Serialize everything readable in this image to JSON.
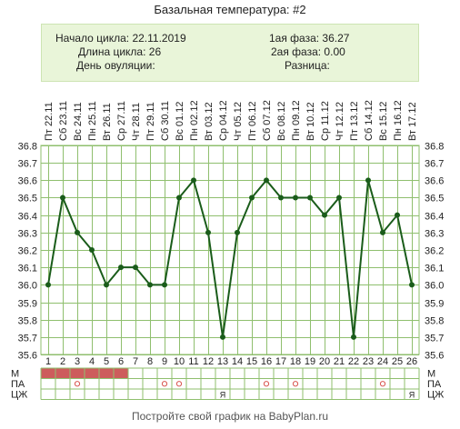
{
  "title": "Базальная температура: #2",
  "info": {
    "cycle_start": "Начало цикла: 22.11.2019",
    "cycle_length": "Длина цикла: 26",
    "ovulation_day": "День овуляции:",
    "phase1": "1ая фаза: 36.27",
    "phase2": "2ая фаза: 0.00",
    "difference": "Разница:"
  },
  "footer": "Постройте свой график на BabyPlan.ru",
  "colors": {
    "line": "#1a5c1a",
    "grid": "#8fbf6e",
    "menstruation": "#cd5c5c",
    "pa_marker": "#d9534f"
  },
  "chart_data": {
    "type": "line",
    "title": "Базальная температура: #2",
    "x": [
      1,
      2,
      3,
      4,
      5,
      6,
      7,
      8,
      9,
      10,
      11,
      12,
      13,
      14,
      15,
      16,
      17,
      18,
      19,
      20,
      21,
      22,
      23,
      24,
      25,
      26
    ],
    "dates": [
      "Пт 22.11",
      "Сб 23.11",
      "Вс 24.11",
      "Пн 25.11",
      "Вт 26.11",
      "Ср 27.11",
      "Чт 28.11",
      "Пт 29.11",
      "Сб 30.11",
      "Вс 01.12",
      "Пн 02.12",
      "Вт 03.12",
      "Ср 04.12",
      "Чт 05.12",
      "Пт 06.12",
      "Сб 07.12",
      "Вс 08.12",
      "Пн 09.12",
      "Вт 10.12",
      "Ср 11.12",
      "Чт 12.12",
      "Пт 13.12",
      "Сб 14.12",
      "Вс 15.12",
      "Пн 16.12",
      "Вт 17.12"
    ],
    "series": [
      {
        "values": [
          36.0,
          36.5,
          36.3,
          36.2,
          36.0,
          36.1,
          36.1,
          36.0,
          36.0,
          36.5,
          36.6,
          36.3,
          35.7,
          36.3,
          36.5,
          36.6,
          36.5,
          36.5,
          36.5,
          36.4,
          36.5,
          35.7,
          36.6,
          36.3,
          36.4,
          36.0
        ]
      }
    ],
    "ylim": [
      35.6,
      36.8
    ],
    "y_ticks": [
      "36.8",
      "36.7",
      "36.6",
      "36.5",
      "36.4",
      "36.3",
      "36.2",
      "36.1",
      "36.0",
      "35.9",
      "35.8",
      "35.7",
      "35.6"
    ],
    "grid": true,
    "rows": {
      "labels_left": [
        "М",
        "ПА",
        "ЦЖ"
      ],
      "labels_right": [
        "М",
        "ПА",
        "ЦЖ"
      ],
      "menstruation_days": [
        1,
        2,
        3,
        4,
        5,
        6
      ],
      "pa_days": [
        3,
        9,
        10,
        16,
        18,
        24
      ],
      "cm_marks": [
        {
          "day": 13,
          "text": "Я"
        },
        {
          "day": 26,
          "text": "Я"
        }
      ]
    }
  }
}
